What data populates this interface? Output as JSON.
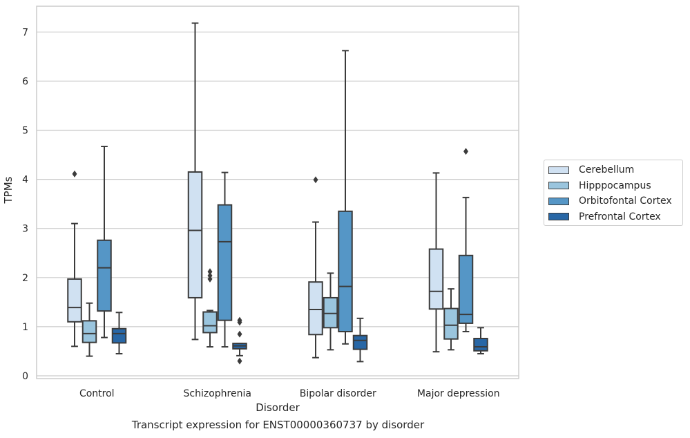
{
  "chart_data": {
    "type": "box",
    "caption": "Transcript expression for ENST00000360737 by disorder",
    "xlabel": "Disorder",
    "ylabel": "TPMs",
    "ylim": [
      -0.05,
      7.55
    ],
    "yticks": [
      0,
      1,
      2,
      3,
      4,
      5,
      6,
      7
    ],
    "grid": "horizontal",
    "legend_position": "right",
    "categories": [
      "Control",
      "Schizophrenia",
      "Bipolar disorder",
      "Major depression"
    ],
    "series": [
      {
        "name": "Cerebellum",
        "color": "#d0e1f2",
        "boxes": [
          {
            "whislo": 0.6,
            "q1": 1.1,
            "med": 1.39,
            "q3": 1.97,
            "whishi": 3.1,
            "fliers": [
              4.11
            ]
          },
          {
            "whislo": 0.74,
            "q1": 1.59,
            "med": 2.96,
            "q3": 4.15,
            "whishi": 7.18,
            "fliers": []
          },
          {
            "whislo": 0.37,
            "q1": 0.84,
            "med": 1.35,
            "q3": 1.91,
            "whishi": 3.13,
            "fliers": [
              3.99
            ]
          },
          {
            "whislo": 0.49,
            "q1": 1.36,
            "med": 1.72,
            "q3": 2.58,
            "whishi": 4.13,
            "fliers": []
          }
        ]
      },
      {
        "name": "Hipppocampus",
        "color": "#9ac5de",
        "boxes": [
          {
            "whislo": 0.4,
            "q1": 0.68,
            "med": 0.86,
            "q3": 1.12,
            "whishi": 1.48,
            "fliers": []
          },
          {
            "whislo": 0.59,
            "q1": 0.88,
            "med": 1.02,
            "q3": 1.3,
            "whishi": 1.33,
            "fliers": [
              1.97,
              2.04,
              2.12
            ]
          },
          {
            "whislo": 0.53,
            "q1": 0.98,
            "med": 1.27,
            "q3": 1.59,
            "whishi": 2.09,
            "fliers": []
          },
          {
            "whislo": 0.53,
            "q1": 0.75,
            "med": 1.03,
            "q3": 1.37,
            "whishi": 1.77,
            "fliers": []
          }
        ]
      },
      {
        "name": "Orbitofontal Cortex",
        "color": "#5596c6",
        "boxes": [
          {
            "whislo": 0.78,
            "q1": 1.32,
            "med": 2.2,
            "q3": 2.76,
            "whishi": 4.67,
            "fliers": []
          },
          {
            "whislo": 0.59,
            "q1": 1.13,
            "med": 2.73,
            "q3": 3.48,
            "whishi": 4.14,
            "fliers": []
          },
          {
            "whislo": 0.65,
            "q1": 0.9,
            "med": 1.82,
            "q3": 3.35,
            "whishi": 6.62,
            "fliers": []
          },
          {
            "whislo": 0.9,
            "q1": 1.07,
            "med": 1.25,
            "q3": 2.45,
            "whishi": 3.63,
            "fliers": [
              4.57
            ]
          }
        ]
      },
      {
        "name": "Prefrontal Cortex",
        "color": "#2867a6",
        "boxes": [
          {
            "whislo": 0.45,
            "q1": 0.67,
            "med": 0.86,
            "q3": 0.96,
            "whishi": 1.29,
            "fliers": []
          },
          {
            "whislo": 0.41,
            "q1": 0.55,
            "med": 0.61,
            "q3": 0.66,
            "whishi": 0.66,
            "fliers": [
              0.3,
              0.85,
              1.09,
              1.13
            ]
          },
          {
            "whislo": 0.29,
            "q1": 0.54,
            "med": 0.72,
            "q3": 0.82,
            "whishi": 1.17,
            "fliers": []
          },
          {
            "whislo": 0.45,
            "q1": 0.51,
            "med": 0.59,
            "q3": 0.76,
            "whishi": 0.98,
            "fliers": []
          }
        ]
      }
    ]
  }
}
